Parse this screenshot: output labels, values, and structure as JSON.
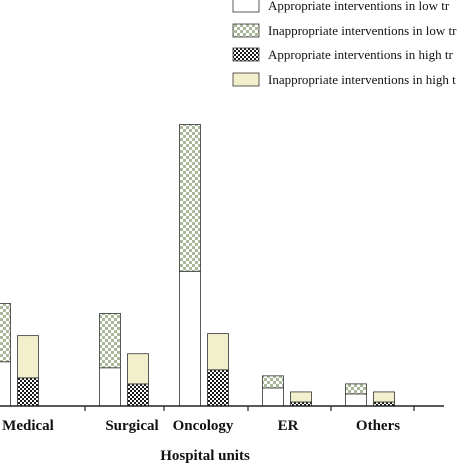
{
  "chart_data": {
    "type": "bar",
    "stacked": true,
    "xlabel": "Hospital units",
    "categories": [
      "Medical",
      "Surgical",
      "Oncology",
      "ER",
      "Others"
    ],
    "tick_labels": [
      "Medical",
      "Surgical",
      "Oncology",
      "ER",
      "Others"
    ],
    "groups": [
      "low trust",
      "high trust"
    ],
    "series": [
      {
        "name": "Appropriate interventions in low trust",
        "group": "low trust",
        "pattern": "white",
        "values": [
          22,
          19,
          67,
          9,
          6
        ]
      },
      {
        "name": "Inappropriate interventions in low trust",
        "group": "low trust",
        "pattern": "checker-green",
        "values": [
          29,
          27,
          73,
          6,
          5
        ]
      },
      {
        "name": "Appropriate interventions in high trust",
        "group": "high trust",
        "pattern": "checker-black",
        "values": [
          14,
          11,
          18,
          2,
          2
        ]
      },
      {
        "name": "Inappropriate interventions in high trust",
        "group": "high trust",
        "pattern": "cream",
        "values": [
          21,
          15,
          18,
          5,
          5
        ]
      }
    ],
    "legend_labels": [
      "Appropriate interventions in low tr",
      "Inappropriate interventions in low tr",
      "Appropriate interventions in high tr",
      "Inappropriate interventions in high t"
    ],
    "ylim": [
      0,
      190
    ],
    "grid": false,
    "legend_position": "top-right",
    "colors": {
      "cream": "#f2f0cc",
      "checker_green_light": "#ffffff",
      "checker_green_dark": "#a9b99a",
      "checker_black_light": "#ffffff",
      "checker_black_dark": "#1a1a1a",
      "outline": "#333333"
    }
  }
}
